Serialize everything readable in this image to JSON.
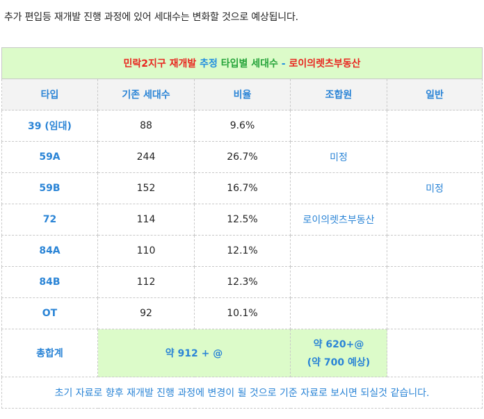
{
  "intro": "추가 편입등 재개발 진행 과정에 있어 세대수는 변화할 것으로 예상됩니다.",
  "title": {
    "part1": "민락2지구 재개발",
    "part2": "추정",
    "part3": "타입별 세대수",
    "part4": " - ",
    "part5": "로이의렛츠부동산"
  },
  "headers": [
    "타입",
    "기존 세대수",
    "비율",
    "조합원",
    "일반"
  ],
  "rows": [
    {
      "type": "39 (임대)",
      "count": "88",
      "ratio": "9.6%"
    },
    {
      "type": "59A",
      "count": "244",
      "ratio": "26.7%"
    },
    {
      "type": "59B",
      "count": "152",
      "ratio": "16.7%"
    },
    {
      "type": "72",
      "count": "114",
      "ratio": "12.5%"
    },
    {
      "type": "84A",
      "count": "110",
      "ratio": "12.1%"
    },
    {
      "type": "84B",
      "count": "112",
      "ratio": "12.3%"
    },
    {
      "type": "OT",
      "count": "92",
      "ratio": "10.1%"
    }
  ],
  "union_label": "미정",
  "union_brand": "로이의렛츠부동산",
  "general_label": "미정",
  "total": {
    "label": "총합계",
    "existing": "약 912 + @",
    "union_line1": "약 620+@",
    "union_line2": "(약 700 예상)"
  },
  "note": "초기 자료로 향후 재개발 진행 과정에 변경이 될 것으로 기준 자료로 보시면 되실것 같습니다."
}
